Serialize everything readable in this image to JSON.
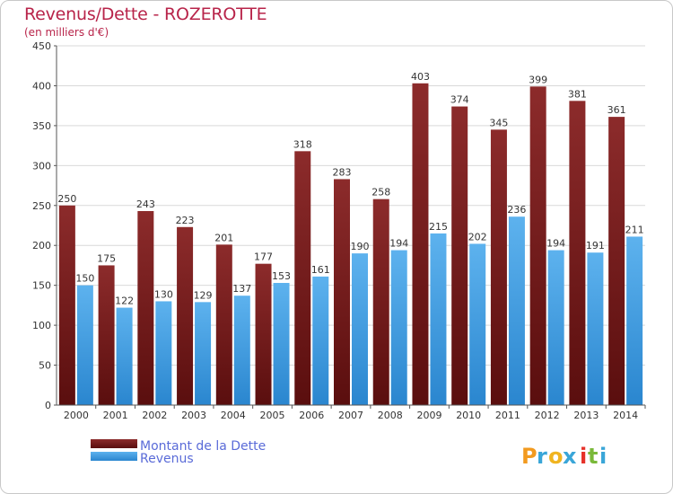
{
  "chart_data": {
    "type": "bar",
    "title": "Revenus/Dette - ROZEROTTE",
    "subtitle": "(en milliers d'€)",
    "categories": [
      "2000",
      "2001",
      "2002",
      "2003",
      "2004",
      "2005",
      "2006",
      "2007",
      "2008",
      "2009",
      "2010",
      "2011",
      "2012",
      "2013",
      "2014"
    ],
    "series": [
      {
        "name": "Montant de la Dette",
        "color": "#7a1a1a",
        "values": [
          250,
          175,
          243,
          223,
          201,
          177,
          318,
          283,
          258,
          403,
          374,
          345,
          399,
          381,
          361
        ]
      },
      {
        "name": "Revenus",
        "color": "#4aa3e3",
        "values": [
          150,
          122,
          130,
          129,
          137,
          153,
          161,
          190,
          194,
          215,
          202,
          236,
          194,
          191,
          211
        ]
      }
    ],
    "yticks": [
      0,
      50,
      100,
      150,
      200,
      250,
      300,
      350,
      400,
      450
    ],
    "ylim": [
      0,
      450
    ],
    "grid": true,
    "legend_position": "bottom-left"
  },
  "brand": "Proxiti"
}
